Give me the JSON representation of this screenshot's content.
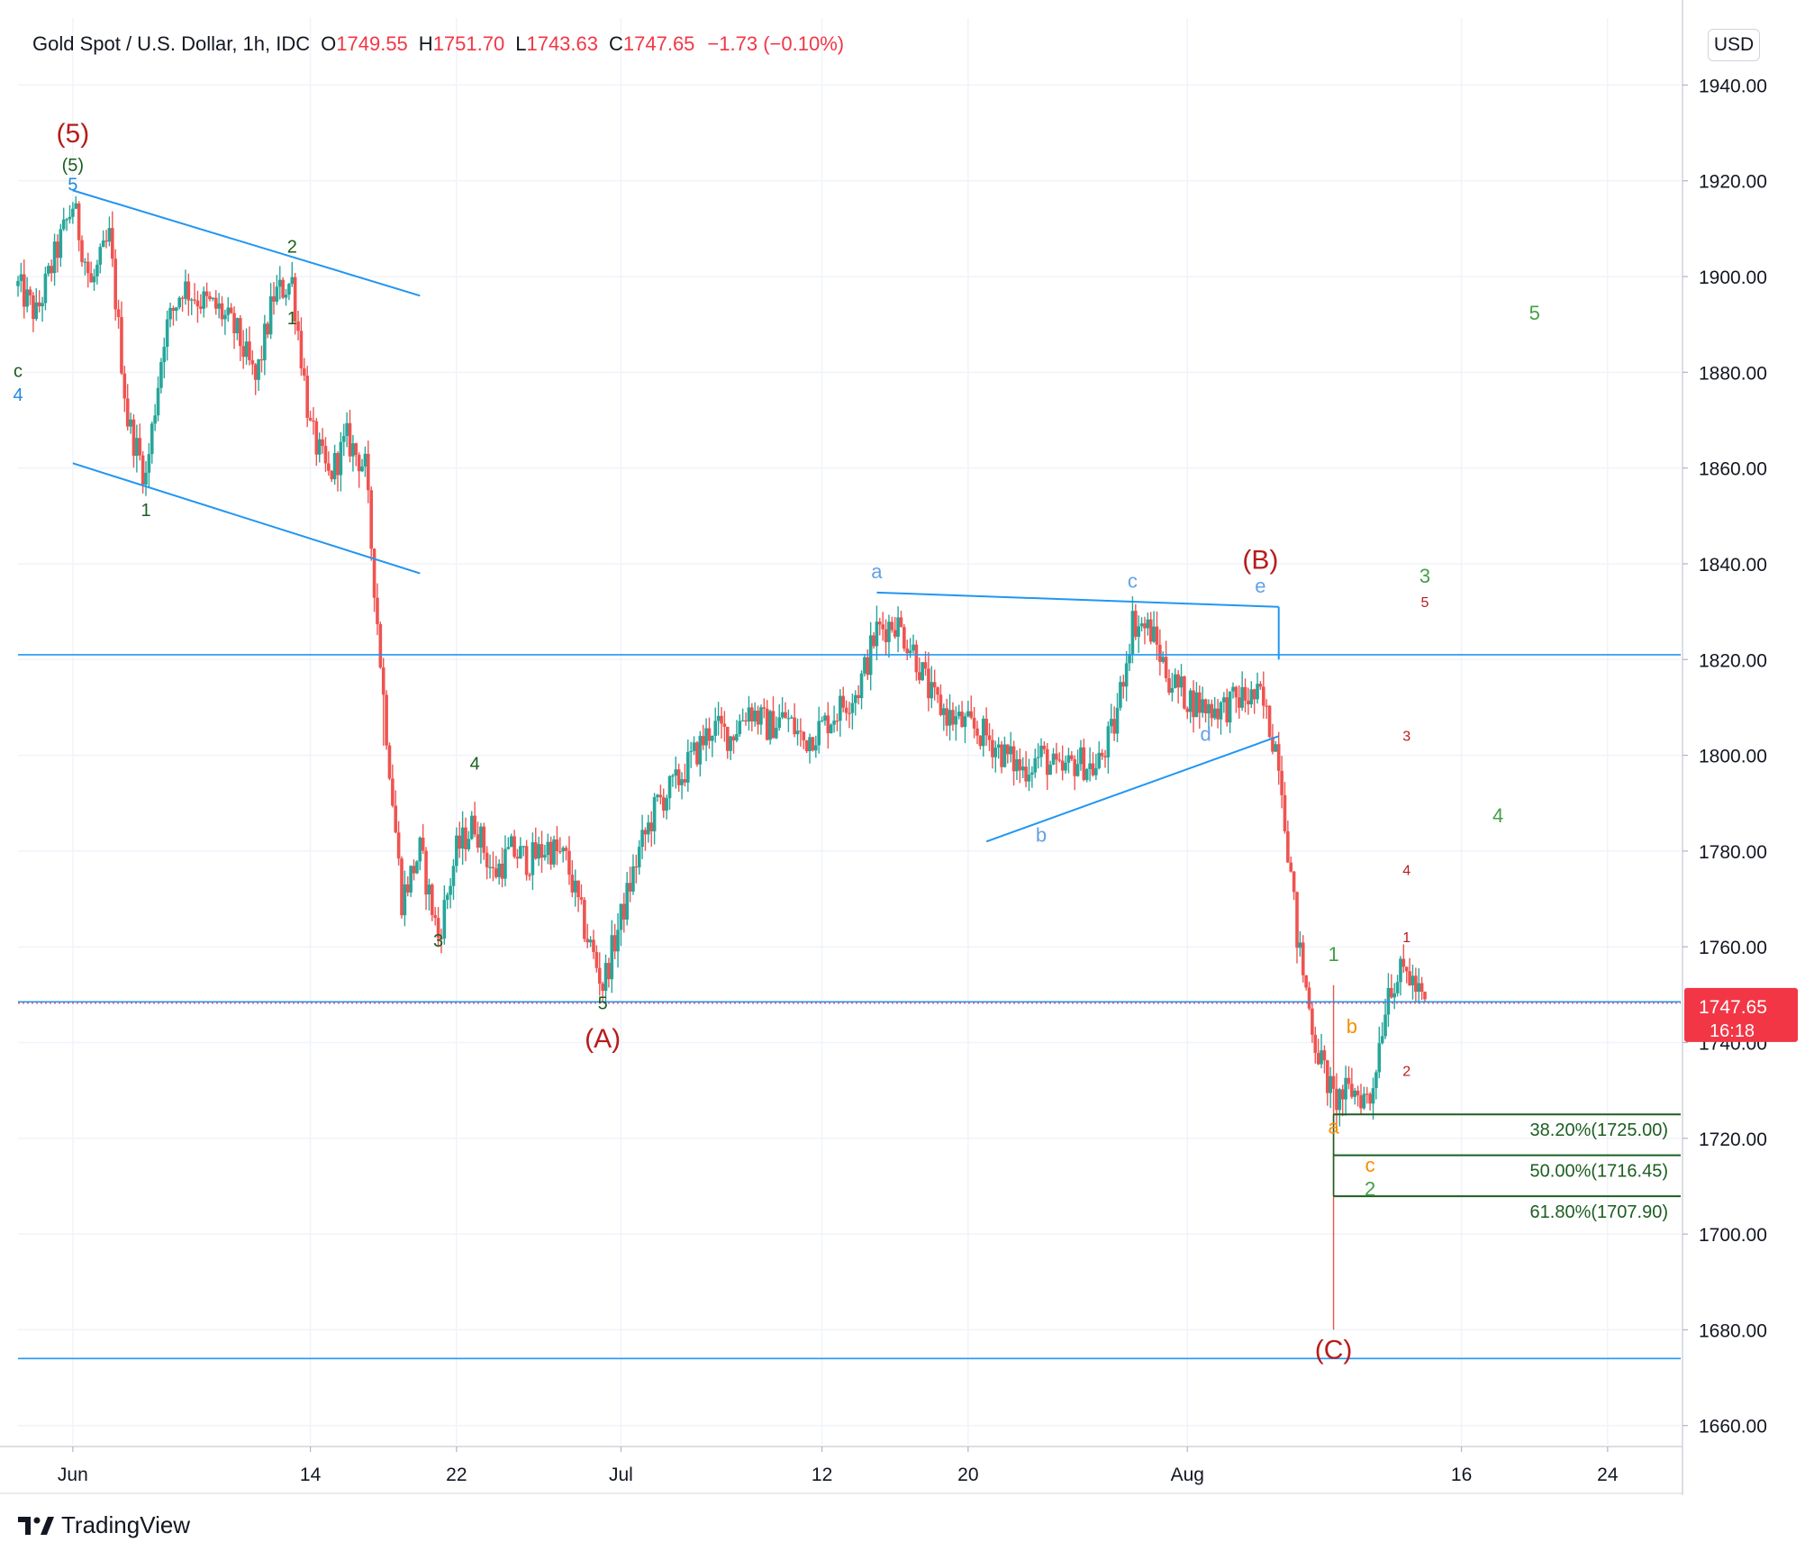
{
  "header": {
    "symbol": "Gold Spot / U.S. Dollar, 1h, IDC",
    "open_label": "O",
    "open": "1749.55",
    "high_label": "H",
    "high": "1751.70",
    "low_label": "L",
    "low": "1743.63",
    "close_label": "C",
    "close": "1747.65",
    "change": "−1.73 (−0.10%)"
  },
  "currency_button": "USD",
  "brand": "TradingView",
  "colors": {
    "up": "#26a69a",
    "down": "#ef5350",
    "trend": "#2196f3",
    "fib": "#1b5e20",
    "price_tag": "#f23645",
    "grid": "#f0f3fa",
    "wave_red": "#b71c1c",
    "wave_dark_green": "#1b5e20",
    "wave_green": "#43a047",
    "wave_orange": "#fb8c00",
    "wave_blue": "#1e88e5",
    "wave_light_blue": "#64a1e6"
  },
  "chart_data": {
    "type": "candlestick",
    "title": "Gold Spot / U.S. Dollar, 1h, IDC",
    "ylim": [
      1656,
      1954
    ],
    "y_ticks": [
      "1660.00",
      "1680.00",
      "1700.00",
      "1720.00",
      "1740.00",
      "1760.00",
      "1780.00",
      "1800.00",
      "1820.00",
      "1840.00",
      "1860.00",
      "1880.00",
      "1900.00",
      "1920.00",
      "1940.00"
    ],
    "x_ticks": [
      {
        "date": "2021-06-01",
        "label": "Jun"
      },
      {
        "date": "2021-06-14",
        "label": "14"
      },
      {
        "date": "2021-06-22",
        "label": "22"
      },
      {
        "date": "2021-07-01",
        "label": "Jul"
      },
      {
        "date": "2021-07-12",
        "label": "12"
      },
      {
        "date": "2021-07-20",
        "label": "20"
      },
      {
        "date": "2021-08-01",
        "label": "Aug"
      },
      {
        "date": "2021-08-16",
        "label": "16"
      },
      {
        "date": "2021-08-24",
        "label": "24"
      }
    ],
    "xlim": [
      "2021-05-29",
      "2021-08-28"
    ],
    "price_path": [
      {
        "t": "2021-05-29",
        "p": 1898
      },
      {
        "t": "2021-05-30",
        "p": 1892
      },
      {
        "t": "2021-05-31",
        "p": 1904
      },
      {
        "t": "2021-06-01",
        "p": 1915
      },
      {
        "t": "2021-06-02",
        "p": 1898
      },
      {
        "t": "2021-06-03",
        "p": 1908
      },
      {
        "t": "2021-06-04",
        "p": 1870
      },
      {
        "t": "2021-06-05",
        "p": 1858
      },
      {
        "t": "2021-06-06",
        "p": 1888
      },
      {
        "t": "2021-06-07",
        "p": 1898
      },
      {
        "t": "2021-06-08",
        "p": 1895
      },
      {
        "t": "2021-06-09",
        "p": 1893
      },
      {
        "t": "2021-06-10",
        "p": 1888
      },
      {
        "t": "2021-06-11",
        "p": 1878
      },
      {
        "t": "2021-06-12",
        "p": 1896
      },
      {
        "t": "2021-06-13",
        "p": 1899
      },
      {
        "t": "2021-06-14",
        "p": 1868
      },
      {
        "t": "2021-06-15",
        "p": 1858
      },
      {
        "t": "2021-06-16",
        "p": 1866
      },
      {
        "t": "2021-06-17",
        "p": 1860
      },
      {
        "t": "2021-06-18",
        "p": 1812
      },
      {
        "t": "2021-06-19",
        "p": 1770
      },
      {
        "t": "2021-06-20",
        "p": 1780
      },
      {
        "t": "2021-06-21",
        "p": 1762
      },
      {
        "t": "2021-06-22",
        "p": 1780
      },
      {
        "t": "2021-06-23",
        "p": 1786
      },
      {
        "t": "2021-06-24",
        "p": 1775
      },
      {
        "t": "2021-06-25",
        "p": 1780
      },
      {
        "t": "2021-06-26",
        "p": 1778
      },
      {
        "t": "2021-06-27",
        "p": 1781
      },
      {
        "t": "2021-06-28",
        "p": 1778
      },
      {
        "t": "2021-06-29",
        "p": 1764
      },
      {
        "t": "2021-06-30",
        "p": 1752
      },
      {
        "t": "2021-07-01",
        "p": 1766
      },
      {
        "t": "2021-07-02",
        "p": 1780
      },
      {
        "t": "2021-07-03",
        "p": 1790
      },
      {
        "t": "2021-07-04",
        "p": 1794
      },
      {
        "t": "2021-07-05",
        "p": 1800
      },
      {
        "t": "2021-07-06",
        "p": 1806
      },
      {
        "t": "2021-07-07",
        "p": 1804
      },
      {
        "t": "2021-07-08",
        "p": 1810
      },
      {
        "t": "2021-07-09",
        "p": 1806
      },
      {
        "t": "2021-07-10",
        "p": 1808
      },
      {
        "t": "2021-07-11",
        "p": 1803
      },
      {
        "t": "2021-07-12",
        "p": 1806
      },
      {
        "t": "2021-07-13",
        "p": 1810
      },
      {
        "t": "2021-07-14",
        "p": 1814
      },
      {
        "t": "2021-07-15",
        "p": 1826
      },
      {
        "t": "2021-07-16",
        "p": 1828
      },
      {
        "t": "2021-07-17",
        "p": 1822
      },
      {
        "t": "2021-07-18",
        "p": 1812
      },
      {
        "t": "2021-07-19",
        "p": 1808
      },
      {
        "t": "2021-07-20",
        "p": 1806
      },
      {
        "t": "2021-07-21",
        "p": 1804
      },
      {
        "t": "2021-07-22",
        "p": 1800
      },
      {
        "t": "2021-07-23",
        "p": 1797
      },
      {
        "t": "2021-07-24",
        "p": 1800
      },
      {
        "t": "2021-07-25",
        "p": 1796
      },
      {
        "t": "2021-07-26",
        "p": 1799
      },
      {
        "t": "2021-07-27",
        "p": 1797
      },
      {
        "t": "2021-07-28",
        "p": 1806
      },
      {
        "t": "2021-07-29",
        "p": 1828
      },
      {
        "t": "2021-07-30",
        "p": 1826
      },
      {
        "t": "2021-07-31",
        "p": 1816
      },
      {
        "t": "2021-08-01",
        "p": 1812
      },
      {
        "t": "2021-08-02",
        "p": 1810
      },
      {
        "t": "2021-08-03",
        "p": 1810
      },
      {
        "t": "2021-08-04",
        "p": 1812
      },
      {
        "t": "2021-08-05",
        "p": 1812
      },
      {
        "t": "2021-08-06",
        "p": 1800
      },
      {
        "t": "2021-08-07",
        "p": 1762
      },
      {
        "t": "2021-08-08",
        "p": 1740
      },
      {
        "t": "2021-08-09",
        "p": 1728
      },
      {
        "t": "2021-08-10",
        "p": 1730
      },
      {
        "t": "2021-08-11",
        "p": 1728
      },
      {
        "t": "2021-08-12",
        "p": 1752
      },
      {
        "t": "2021-08-13",
        "p": 1755
      },
      {
        "t": "2021-08-14",
        "p": 1747.65
      }
    ],
    "spikes": [
      {
        "t": "2021-06-18",
        "low": 1802
      },
      {
        "t": "2021-08-09",
        "high": 1752,
        "low": 1680
      }
    ],
    "last_price": "1747.65",
    "last_price_countdown": "16:18",
    "horizontal_lines": [
      {
        "name": "resistance",
        "value": 1821
      },
      {
        "name": "current",
        "value": 1748.5
      },
      {
        "name": "support",
        "value": 1674
      }
    ],
    "trendlines": [
      {
        "from": [
          "2021-06-01",
          1918
        ],
        "to": [
          "2021-06-20",
          1896
        ]
      },
      {
        "from": [
          "2021-06-01",
          1861
        ],
        "to": [
          "2021-06-20",
          1838
        ]
      },
      {
        "from": [
          "2021-07-15",
          1834
        ],
        "to": [
          "2021-08-06",
          1831
        ]
      },
      {
        "from": [
          "2021-07-21",
          1782
        ],
        "to": [
          "2021-08-06",
          1804
        ]
      },
      {
        "from": [
          "2021-08-06",
          1831
        ],
        "to": [
          "2021-08-06",
          1820
        ]
      }
    ],
    "fib_levels": [
      {
        "label": "38.20%(1725.00)",
        "value": 1725.0
      },
      {
        "label": "50.00%(1716.45)",
        "value": 1716.45
      },
      {
        "label": "61.80%(1707.90)",
        "value": 1707.9
      }
    ],
    "fib_start": "2021-08-09",
    "wave_labels": [
      {
        "text": "(5)",
        "t": "2021-06-01",
        "p": 1928,
        "color": "wave_red",
        "size": 30
      },
      {
        "text": "(5)",
        "t": "2021-06-01",
        "p": 1922,
        "color": "wave_dark_green",
        "size": 20
      },
      {
        "text": "5",
        "t": "2021-06-01",
        "p": 1918,
        "color": "wave_blue",
        "size": 20
      },
      {
        "text": "c",
        "t": "2021-05-29",
        "p": 1879,
        "color": "wave_dark_green",
        "size": 20
      },
      {
        "text": "4",
        "t": "2021-05-29",
        "p": 1874,
        "color": "wave_blue",
        "size": 20
      },
      {
        "text": "1",
        "t": "2021-06-05",
        "p": 1850,
        "color": "wave_dark_green",
        "size": 20
      },
      {
        "text": "2",
        "t": "2021-06-13",
        "p": 1905,
        "color": "wave_dark_green",
        "size": 20
      },
      {
        "text": "1",
        "t": "2021-06-13",
        "p": 1890,
        "color": "wave_dark_green",
        "size": 20
      },
      {
        "text": "4",
        "t": "2021-06-23",
        "p": 1797,
        "color": "wave_dark_green",
        "size": 20
      },
      {
        "text": "3",
        "t": "2021-06-21",
        "p": 1760,
        "color": "wave_dark_green",
        "size": 20
      },
      {
        "text": "5",
        "t": "2021-06-30",
        "p": 1747,
        "color": "wave_dark_green",
        "size": 20
      },
      {
        "text": "(A)",
        "t": "2021-06-30",
        "p": 1739,
        "color": "wave_red",
        "size": 30
      },
      {
        "text": "a",
        "t": "2021-07-15",
        "p": 1837,
        "color": "wave_light_blue",
        "size": 22
      },
      {
        "text": "b",
        "t": "2021-07-24",
        "p": 1782,
        "color": "wave_light_blue",
        "size": 22
      },
      {
        "text": "c",
        "t": "2021-07-29",
        "p": 1835,
        "color": "wave_light_blue",
        "size": 22
      },
      {
        "text": "d",
        "t": "2021-08-02",
        "p": 1803,
        "color": "wave_light_blue",
        "size": 22
      },
      {
        "text": "e",
        "t": "2021-08-05",
        "p": 1834,
        "color": "wave_light_blue",
        "size": 22
      },
      {
        "text": "(B)",
        "t": "2021-08-05",
        "p": 1839,
        "color": "wave_red",
        "size": 30
      },
      {
        "text": "(C)",
        "t": "2021-08-09",
        "p": 1674,
        "color": "wave_red",
        "size": 30
      },
      {
        "text": "1",
        "t": "2021-08-09",
        "p": 1757,
        "color": "wave_green",
        "size": 22
      },
      {
        "text": "b",
        "t": "2021-08-10",
        "p": 1742,
        "color": "wave_orange",
        "size": 22
      },
      {
        "text": "a",
        "t": "2021-08-09",
        "p": 1721,
        "color": "wave_orange",
        "size": 22
      },
      {
        "text": "c",
        "t": "2021-08-11",
        "p": 1713,
        "color": "wave_orange",
        "size": 22
      },
      {
        "text": "2",
        "t": "2021-08-11",
        "p": 1708,
        "color": "wave_green",
        "size": 22
      },
      {
        "text": "1",
        "t": "2021-08-13",
        "p": 1761,
        "color": "wave_red",
        "size": 16
      },
      {
        "text": "2",
        "t": "2021-08-13",
        "p": 1733,
        "color": "wave_red",
        "size": 16
      },
      {
        "text": "3",
        "t": "2021-08-13",
        "p": 1803,
        "color": "wave_red",
        "size": 16
      },
      {
        "text": "4",
        "t": "2021-08-13",
        "p": 1775,
        "color": "wave_red",
        "size": 16
      },
      {
        "text": "5",
        "t": "2021-08-14",
        "p": 1831,
        "color": "wave_red",
        "size": 16
      },
      {
        "text": "3",
        "t": "2021-08-14",
        "p": 1836,
        "color": "wave_green",
        "size": 22
      },
      {
        "text": "4",
        "t": "2021-08-18",
        "p": 1786,
        "color": "wave_green",
        "size": 22
      },
      {
        "text": "5",
        "t": "2021-08-20",
        "p": 1891,
        "color": "wave_green",
        "size": 22
      }
    ]
  }
}
